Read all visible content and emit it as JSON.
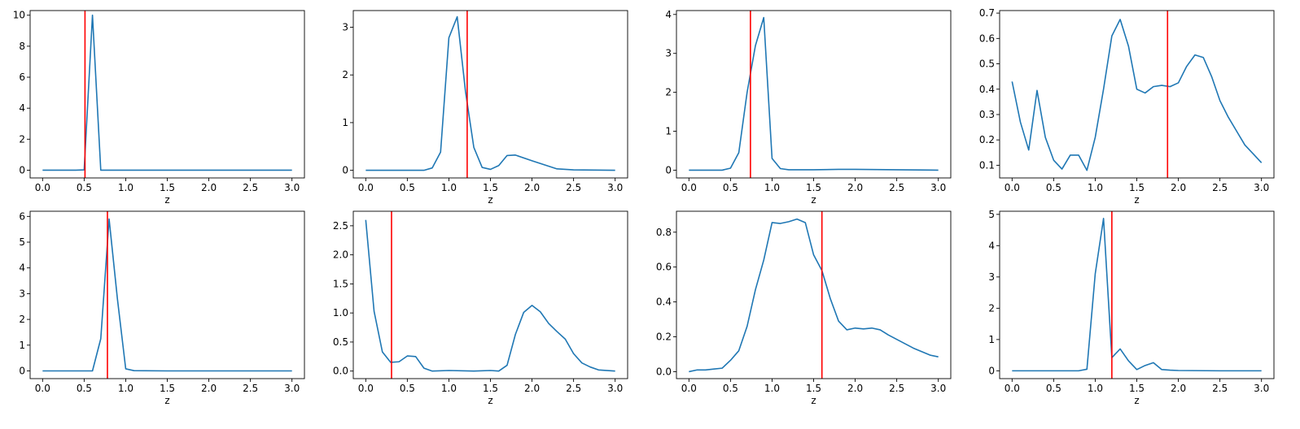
{
  "colors": {
    "series": "#1f77b4",
    "marker": "#ff0000",
    "axes": "#000000",
    "background": "#ffffff"
  },
  "chart_data": [
    {
      "type": "line",
      "xlabel": "z",
      "xlim": [
        -0.15,
        3.15
      ],
      "ylim": [
        -0.5,
        10.3
      ],
      "xticks": [
        0.0,
        0.5,
        1.0,
        1.5,
        2.0,
        2.5,
        3.0
      ],
      "xtick_labels": [
        "0.0",
        "0.5",
        "1.0",
        "1.5",
        "2.0",
        "2.5",
        "3.0"
      ],
      "yticks": [
        0,
        2,
        4,
        6,
        8,
        10
      ],
      "ytick_labels": [
        "0",
        "2",
        "4",
        "6",
        "8",
        "10"
      ],
      "grid": false,
      "series": [
        {
          "x": [
            0,
            0.1,
            0.2,
            0.3,
            0.4,
            0.5,
            0.6,
            0.7,
            0.8,
            1.0,
            1.5,
            2.0,
            2.5,
            3.0
          ],
          "y": [
            0,
            0,
            0,
            0,
            0,
            0.02,
            10,
            0,
            0,
            0,
            0,
            0,
            0,
            0
          ]
        }
      ],
      "vline_x": 0.51
    },
    {
      "type": "line",
      "xlabel": "z",
      "xlim": [
        -0.15,
        3.15
      ],
      "ylim": [
        -0.16,
        3.35
      ],
      "xticks": [
        0.0,
        0.5,
        1.0,
        1.5,
        2.0,
        2.5,
        3.0
      ],
      "xtick_labels": [
        "0.0",
        "0.5",
        "1.0",
        "1.5",
        "2.0",
        "2.5",
        "3.0"
      ],
      "yticks": [
        0,
        1,
        2,
        3
      ],
      "ytick_labels": [
        "0",
        "1",
        "2",
        "3"
      ],
      "grid": false,
      "series": [
        {
          "x": [
            0,
            0.5,
            0.7,
            0.8,
            0.9,
            1.0,
            1.1,
            1.2,
            1.3,
            1.4,
            1.5,
            1.6,
            1.7,
            1.8,
            2.0,
            2.3,
            2.5,
            3.0
          ],
          "y": [
            0,
            0,
            0,
            0.05,
            0.38,
            2.78,
            3.22,
            1.65,
            0.48,
            0.06,
            0.02,
            0.1,
            0.31,
            0.32,
            0.2,
            0.03,
            0.01,
            0
          ]
        }
      ],
      "vline_x": 1.22
    },
    {
      "type": "line",
      "xlabel": "z",
      "xlim": [
        -0.15,
        3.15
      ],
      "ylim": [
        -0.2,
        4.1
      ],
      "xticks": [
        0.0,
        0.5,
        1.0,
        1.5,
        2.0,
        2.5,
        3.0
      ],
      "xtick_labels": [
        "0.0",
        "0.5",
        "1.0",
        "1.5",
        "2.0",
        "2.5",
        "3.0"
      ],
      "yticks": [
        0,
        1,
        2,
        3,
        4
      ],
      "ytick_labels": [
        "0",
        "1",
        "2",
        "3",
        "4"
      ],
      "grid": false,
      "series": [
        {
          "x": [
            0,
            0.3,
            0.4,
            0.5,
            0.6,
            0.7,
            0.8,
            0.9,
            1.0,
            1.1,
            1.2,
            1.5,
            1.8,
            2.0,
            2.5,
            3.0
          ],
          "y": [
            0,
            0,
            0,
            0.05,
            0.45,
            2.0,
            3.2,
            3.92,
            0.3,
            0.04,
            0.01,
            0.01,
            0.02,
            0.02,
            0.01,
            0
          ]
        }
      ],
      "vline_x": 0.74
    },
    {
      "type": "line",
      "xlabel": "z",
      "xlim": [
        -0.15,
        3.15
      ],
      "ylim": [
        0.05,
        0.71
      ],
      "xticks": [
        0.0,
        0.5,
        1.0,
        1.5,
        2.0,
        2.5,
        3.0
      ],
      "xtick_labels": [
        "0.0",
        "0.5",
        "1.0",
        "1.5",
        "2.0",
        "2.5",
        "3.0"
      ],
      "yticks": [
        0.1,
        0.2,
        0.3,
        0.4,
        0.5,
        0.6,
        0.7
      ],
      "ytick_labels": [
        "0.1",
        "0.2",
        "0.3",
        "0.4",
        "0.5",
        "0.6",
        "0.7"
      ],
      "grid": false,
      "series": [
        {
          "x": [
            0,
            0.1,
            0.2,
            0.3,
            0.4,
            0.5,
            0.6,
            0.7,
            0.8,
            0.9,
            1.0,
            1.1,
            1.2,
            1.3,
            1.4,
            1.5,
            1.6,
            1.7,
            1.8,
            1.9,
            2.0,
            2.1,
            2.2,
            2.3,
            2.4,
            2.5,
            2.6,
            2.7,
            2.8,
            2.9,
            3.0
          ],
          "y": [
            0.43,
            0.27,
            0.16,
            0.395,
            0.21,
            0.12,
            0.085,
            0.14,
            0.14,
            0.08,
            0.21,
            0.4,
            0.61,
            0.675,
            0.57,
            0.4,
            0.385,
            0.41,
            0.415,
            0.41,
            0.425,
            0.49,
            0.535,
            0.525,
            0.45,
            0.355,
            0.29,
            0.235,
            0.18,
            0.145,
            0.11
          ]
        }
      ],
      "vline_x": 1.87
    },
    {
      "type": "line",
      "xlabel": "z",
      "xlim": [
        -0.15,
        3.15
      ],
      "ylim": [
        -0.3,
        6.2
      ],
      "xticks": [
        0.0,
        0.5,
        1.0,
        1.5,
        2.0,
        2.5,
        3.0
      ],
      "xtick_labels": [
        "0.0",
        "0.5",
        "1.0",
        "1.5",
        "2.0",
        "2.5",
        "3.0"
      ],
      "yticks": [
        0,
        1,
        2,
        3,
        4,
        5,
        6
      ],
      "ytick_labels": [
        "0",
        "1",
        "2",
        "3",
        "4",
        "5",
        "6"
      ],
      "grid": false,
      "series": [
        {
          "x": [
            0,
            0.5,
            0.6,
            0.7,
            0.8,
            0.9,
            1.0,
            1.1,
            1.5,
            2.0,
            2.5,
            3.0
          ],
          "y": [
            0,
            0,
            0,
            1.25,
            5.9,
            2.8,
            0.08,
            0.01,
            0,
            0,
            0,
            0
          ]
        }
      ],
      "vline_x": 0.78
    },
    {
      "type": "line",
      "xlabel": "z",
      "xlim": [
        -0.15,
        3.15
      ],
      "ylim": [
        -0.13,
        2.75
      ],
      "xticks": [
        0.0,
        0.5,
        1.0,
        1.5,
        2.0,
        2.5,
        3.0
      ],
      "xtick_labels": [
        "0.0",
        "0.5",
        "1.0",
        "1.5",
        "2.0",
        "2.5",
        "3.0"
      ],
      "yticks": [
        0.0,
        0.5,
        1.0,
        1.5,
        2.0,
        2.5
      ],
      "ytick_labels": [
        "0.0",
        "0.5",
        "1.0",
        "1.5",
        "2.0",
        "2.5"
      ],
      "grid": false,
      "series": [
        {
          "x": [
            0,
            0.1,
            0.2,
            0.3,
            0.4,
            0.5,
            0.6,
            0.7,
            0.8,
            1.0,
            1.3,
            1.5,
            1.6,
            1.7,
            1.8,
            1.9,
            2.0,
            2.1,
            2.2,
            2.3,
            2.4,
            2.5,
            2.6,
            2.7,
            2.8,
            3.0
          ],
          "y": [
            2.6,
            1.03,
            0.33,
            0.15,
            0.16,
            0.26,
            0.25,
            0.05,
            0,
            0.01,
            0,
            0.01,
            0,
            0.1,
            0.63,
            1.01,
            1.13,
            1.02,
            0.82,
            0.68,
            0.55,
            0.3,
            0.14,
            0.07,
            0.02,
            0
          ]
        }
      ],
      "vline_x": 0.31
    },
    {
      "type": "line",
      "xlabel": "z",
      "xlim": [
        -0.15,
        3.15
      ],
      "ylim": [
        -0.04,
        0.92
      ],
      "xticks": [
        0.0,
        0.5,
        1.0,
        1.5,
        2.0,
        2.5,
        3.0
      ],
      "xtick_labels": [
        "0.0",
        "0.5",
        "1.0",
        "1.5",
        "2.0",
        "2.5",
        "3.0"
      ],
      "yticks": [
        0.0,
        0.2,
        0.4,
        0.6,
        0.8
      ],
      "ytick_labels": [
        "0.0",
        "0.2",
        "0.4",
        "0.6",
        "0.8"
      ],
      "grid": false,
      "series": [
        {
          "x": [
            0,
            0.1,
            0.2,
            0.3,
            0.4,
            0.5,
            0.6,
            0.7,
            0.8,
            0.9,
            1.0,
            1.1,
            1.2,
            1.3,
            1.4,
            1.5,
            1.6,
            1.7,
            1.8,
            1.9,
            2.0,
            2.1,
            2.2,
            2.3,
            2.4,
            2.5,
            2.6,
            2.7,
            2.8,
            2.9,
            3.0
          ],
          "y": [
            0.0,
            0.01,
            0.01,
            0.015,
            0.02,
            0.065,
            0.12,
            0.26,
            0.47,
            0.64,
            0.855,
            0.85,
            0.86,
            0.875,
            0.855,
            0.67,
            0.58,
            0.42,
            0.29,
            0.24,
            0.25,
            0.245,
            0.25,
            0.24,
            0.21,
            0.185,
            0.16,
            0.135,
            0.115,
            0.095,
            0.085
          ]
        }
      ],
      "vline_x": 1.6
    },
    {
      "type": "line",
      "xlabel": "z",
      "xlim": [
        -0.15,
        3.15
      ],
      "ylim": [
        -0.25,
        5.1
      ],
      "xticks": [
        0.0,
        0.5,
        1.0,
        1.5,
        2.0,
        2.5,
        3.0
      ],
      "xtick_labels": [
        "0.0",
        "0.5",
        "1.0",
        "1.5",
        "2.0",
        "2.5",
        "3.0"
      ],
      "yticks": [
        0,
        1,
        2,
        3,
        4,
        5
      ],
      "ytick_labels": [
        "0",
        "1",
        "2",
        "3",
        "4",
        "5"
      ],
      "grid": false,
      "series": [
        {
          "x": [
            0,
            0.5,
            0.8,
            0.9,
            1.0,
            1.1,
            1.2,
            1.3,
            1.4,
            1.5,
            1.6,
            1.7,
            1.8,
            1.9,
            2.0,
            2.5,
            3.0
          ],
          "y": [
            0,
            0,
            0,
            0.05,
            3.1,
            4.87,
            0.42,
            0.7,
            0.32,
            0.04,
            0.17,
            0.26,
            0.04,
            0.02,
            0.01,
            0,
            0
          ]
        }
      ],
      "vline_x": 1.2
    }
  ]
}
